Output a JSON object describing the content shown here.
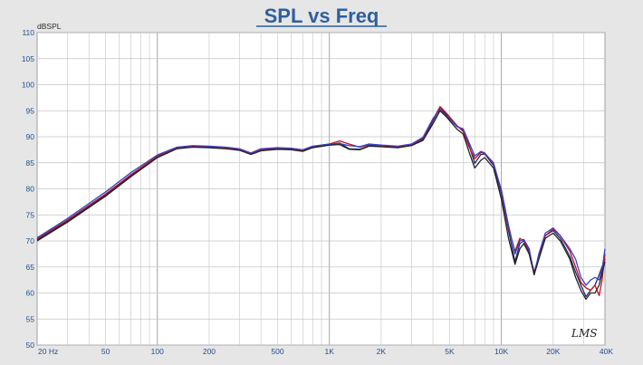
{
  "chart_data": {
    "type": "line",
    "title": "SPL vs Freq",
    "ylabel": "dBSPL",
    "xlabel": "",
    "x_scale": "log",
    "xlim": [
      20,
      40000
    ],
    "ylim": [
      50,
      110
    ],
    "grid": true,
    "y_ticks": [
      {
        "value": 50,
        "label": "50"
      },
      {
        "value": 55,
        "label": "55"
      },
      {
        "value": 60,
        "label": "60"
      },
      {
        "value": 65,
        "label": "65"
      },
      {
        "value": 70,
        "label": "70"
      },
      {
        "value": 75,
        "label": "75"
      },
      {
        "value": 80,
        "label": "80"
      },
      {
        "value": 85,
        "label": "85"
      },
      {
        "value": 90,
        "label": "90"
      },
      {
        "value": 95,
        "label": "95"
      },
      {
        "value": 100,
        "label": "100"
      },
      {
        "value": 105,
        "label": "105"
      },
      {
        "value": 110,
        "label": "110"
      }
    ],
    "x_ticks": [
      {
        "value": 20,
        "label": "20  Hz"
      },
      {
        "value": 50,
        "label": "50"
      },
      {
        "value": 100,
        "label": "100"
      },
      {
        "value": 200,
        "label": "200"
      },
      {
        "value": 500,
        "label": "500"
      },
      {
        "value": 1000,
        "label": "1K"
      },
      {
        "value": 2000,
        "label": "2K"
      },
      {
        "value": 5000,
        "label": "5K"
      },
      {
        "value": 10000,
        "label": "10K"
      },
      {
        "value": 20000,
        "label": "20K"
      },
      {
        "value": 40000,
        "label": "40K"
      }
    ],
    "logo": "LMS",
    "series": [
      {
        "color": "#1f2a6b",
        "points": [
          [
            20,
            70.2
          ],
          [
            30,
            73.8
          ],
          [
            50,
            78.8
          ],
          [
            70,
            82.5
          ],
          [
            100,
            86.2
          ],
          [
            130,
            87.8
          ],
          [
            160,
            88.1
          ],
          [
            200,
            88.0
          ],
          [
            250,
            87.8
          ],
          [
            300,
            87.5
          ],
          [
            350,
            86.7
          ],
          [
            400,
            87.4
          ],
          [
            500,
            87.7
          ],
          [
            600,
            87.6
          ],
          [
            700,
            87.3
          ],
          [
            800,
            88.0
          ],
          [
            1000,
            88.5
          ],
          [
            1150,
            88.8
          ],
          [
            1300,
            87.7
          ],
          [
            1500,
            87.6
          ],
          [
            1700,
            88.3
          ],
          [
            2000,
            88.2
          ],
          [
            2500,
            88.0
          ],
          [
            3000,
            88.4
          ],
          [
            3500,
            89.5
          ],
          [
            4000,
            93.0
          ],
          [
            4400,
            95.6
          ],
          [
            4800,
            94.2
          ],
          [
            5500,
            92.0
          ],
          [
            6000,
            91.3
          ],
          [
            6500,
            88.3
          ],
          [
            7000,
            84.9
          ],
          [
            7600,
            86.6
          ],
          [
            8000,
            86.7
          ],
          [
            9000,
            84.5
          ],
          [
            10000,
            79.0
          ],
          [
            11000,
            72.0
          ],
          [
            12000,
            66.0
          ],
          [
            12800,
            69.5
          ],
          [
            13500,
            70.0
          ],
          [
            14500,
            68.0
          ],
          [
            15500,
            64.0
          ],
          [
            16500,
            67.0
          ],
          [
            18000,
            71.0
          ],
          [
            20000,
            72.0
          ],
          [
            22000,
            70.5
          ],
          [
            25000,
            67.0
          ],
          [
            27000,
            64.0
          ],
          [
            29000,
            61.5
          ],
          [
            31000,
            59.3
          ],
          [
            33000,
            60.5
          ],
          [
            35000,
            61.5
          ],
          [
            37000,
            63.5
          ],
          [
            40000,
            66.5
          ]
        ]
      },
      {
        "color": "#c8101e",
        "points": [
          [
            20,
            70.4
          ],
          [
            30,
            74.0
          ],
          [
            50,
            79.0
          ],
          [
            70,
            82.7
          ],
          [
            100,
            86.3
          ],
          [
            130,
            87.9
          ],
          [
            160,
            88.2
          ],
          [
            200,
            88.1
          ],
          [
            250,
            87.9
          ],
          [
            300,
            87.6
          ],
          [
            350,
            86.8
          ],
          [
            400,
            87.5
          ],
          [
            500,
            87.8
          ],
          [
            600,
            87.7
          ],
          [
            700,
            87.4
          ],
          [
            800,
            88.1
          ],
          [
            1000,
            88.6
          ],
          [
            1150,
            89.2
          ],
          [
            1300,
            88.6
          ],
          [
            1500,
            88.0
          ],
          [
            1700,
            88.5
          ],
          [
            2000,
            88.3
          ],
          [
            2500,
            88.1
          ],
          [
            3000,
            88.5
          ],
          [
            3500,
            89.7
          ],
          [
            4000,
            93.3
          ],
          [
            4400,
            95.8
          ],
          [
            4800,
            94.5
          ],
          [
            5500,
            92.2
          ],
          [
            6000,
            91.0
          ],
          [
            6500,
            88.0
          ],
          [
            7000,
            85.8
          ],
          [
            7600,
            87.0
          ],
          [
            8000,
            86.8
          ],
          [
            9000,
            85.0
          ],
          [
            10000,
            79.5
          ],
          [
            11000,
            72.5
          ],
          [
            12000,
            68.0
          ],
          [
            12800,
            70.5
          ],
          [
            13500,
            70.0
          ],
          [
            14500,
            67.5
          ],
          [
            15500,
            64.0
          ],
          [
            16500,
            67.0
          ],
          [
            18000,
            71.0
          ],
          [
            20000,
            72.3
          ],
          [
            22000,
            71.0
          ],
          [
            25000,
            68.0
          ],
          [
            27000,
            65.0
          ],
          [
            29000,
            62.0
          ],
          [
            31000,
            61.0
          ],
          [
            33000,
            60.5
          ],
          [
            35000,
            61.5
          ],
          [
            37000,
            59.5
          ],
          [
            38500,
            62.5
          ],
          [
            40000,
            67.5
          ]
        ]
      },
      {
        "color": "#3344c8",
        "points": [
          [
            20,
            70.6
          ],
          [
            30,
            74.3
          ],
          [
            50,
            79.4
          ],
          [
            70,
            83.1
          ],
          [
            100,
            86.5
          ],
          [
            130,
            88.0
          ],
          [
            160,
            88.3
          ],
          [
            200,
            88.2
          ],
          [
            250,
            88.0
          ],
          [
            300,
            87.7
          ],
          [
            350,
            86.9
          ],
          [
            400,
            87.7
          ],
          [
            500,
            87.9
          ],
          [
            600,
            87.8
          ],
          [
            700,
            87.5
          ],
          [
            800,
            88.2
          ],
          [
            1000,
            88.6
          ],
          [
            1150,
            88.7
          ],
          [
            1300,
            88.3
          ],
          [
            1500,
            88.1
          ],
          [
            1700,
            88.6
          ],
          [
            2000,
            88.4
          ],
          [
            2500,
            88.2
          ],
          [
            3000,
            88.6
          ],
          [
            3500,
            89.9
          ],
          [
            4000,
            93.5
          ],
          [
            4400,
            95.2
          ],
          [
            4800,
            94.0
          ],
          [
            5500,
            92.0
          ],
          [
            6000,
            91.5
          ],
          [
            6500,
            88.8
          ],
          [
            7000,
            86.3
          ],
          [
            7600,
            87.2
          ],
          [
            8000,
            86.9
          ],
          [
            9000,
            84.8
          ],
          [
            10000,
            79.8
          ],
          [
            11000,
            73.0
          ],
          [
            12000,
            67.5
          ],
          [
            12800,
            70.0
          ],
          [
            13500,
            70.3
          ],
          [
            14500,
            68.5
          ],
          [
            15500,
            63.5
          ],
          [
            16500,
            67.5
          ],
          [
            18000,
            71.5
          ],
          [
            20000,
            72.5
          ],
          [
            22000,
            71.0
          ],
          [
            25000,
            68.5
          ],
          [
            27000,
            66.5
          ],
          [
            29000,
            63.0
          ],
          [
            31000,
            61.5
          ],
          [
            33000,
            62.5
          ],
          [
            35000,
            63.0
          ],
          [
            37000,
            62.5
          ],
          [
            38500,
            64.5
          ],
          [
            40000,
            68.5
          ]
        ]
      },
      {
        "color": "#222222",
        "points": [
          [
            20,
            70.0
          ],
          [
            30,
            73.6
          ],
          [
            50,
            78.6
          ],
          [
            70,
            82.3
          ],
          [
            100,
            86.0
          ],
          [
            130,
            87.7
          ],
          [
            160,
            88.0
          ],
          [
            200,
            87.9
          ],
          [
            250,
            87.7
          ],
          [
            300,
            87.4
          ],
          [
            350,
            86.6
          ],
          [
            400,
            87.3
          ],
          [
            500,
            87.6
          ],
          [
            600,
            87.5
          ],
          [
            700,
            87.2
          ],
          [
            800,
            87.9
          ],
          [
            1000,
            88.4
          ],
          [
            1150,
            88.5
          ],
          [
            1300,
            87.6
          ],
          [
            1500,
            87.5
          ],
          [
            1700,
            88.2
          ],
          [
            2000,
            88.1
          ],
          [
            2500,
            87.9
          ],
          [
            3000,
            88.3
          ],
          [
            3500,
            89.3
          ],
          [
            4000,
            92.5
          ],
          [
            4400,
            95.0
          ],
          [
            4800,
            93.8
          ],
          [
            5500,
            91.5
          ],
          [
            6000,
            90.5
          ],
          [
            6500,
            87.0
          ],
          [
            7000,
            84.0
          ],
          [
            7600,
            85.5
          ],
          [
            8000,
            86.0
          ],
          [
            9000,
            84.0
          ],
          [
            10000,
            78.0
          ],
          [
            11000,
            70.5
          ],
          [
            12000,
            65.5
          ],
          [
            12800,
            68.5
          ],
          [
            13500,
            69.5
          ],
          [
            14500,
            67.5
          ],
          [
            15500,
            63.5
          ],
          [
            16500,
            66.5
          ],
          [
            18000,
            70.5
          ],
          [
            20000,
            71.5
          ],
          [
            22000,
            70.0
          ],
          [
            25000,
            66.5
          ],
          [
            27000,
            63.0
          ],
          [
            29000,
            60.5
          ],
          [
            31000,
            58.8
          ],
          [
            33000,
            60.0
          ],
          [
            35000,
            60.0
          ],
          [
            37000,
            61.5
          ],
          [
            40000,
            66.0
          ]
        ]
      }
    ]
  }
}
